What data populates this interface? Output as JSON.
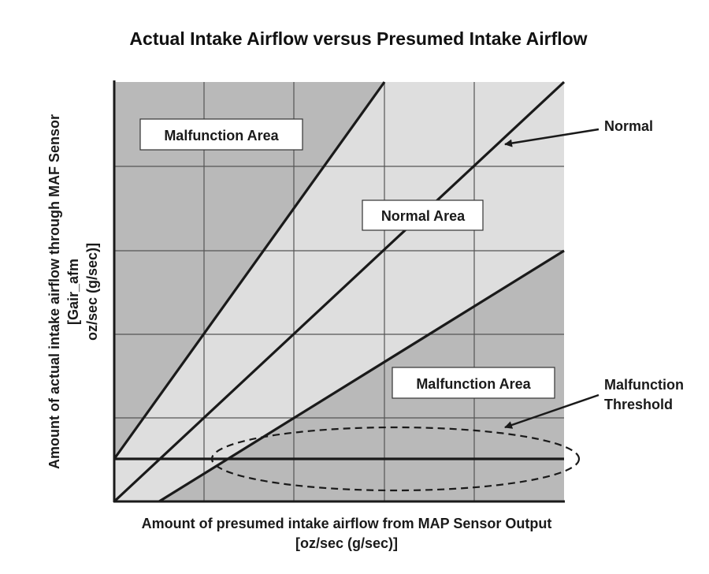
{
  "title": "Actual Intake Airflow versus Presumed Intake Airflow",
  "y_axis": {
    "line1": "Amount of actual intake airflow through MAF Sensor",
    "line2": "[Gair_afm",
    "line3": "oz/sec (g/sec)]"
  },
  "x_axis": {
    "line1": "Amount of presumed intake airflow from MAP Sensor Output",
    "line2": "[oz/sec (g/sec)]"
  },
  "regions": {
    "upper_malfunction": "Malfunction Area",
    "normal": "Normal Area",
    "lower_malfunction": "Malfunction Area"
  },
  "callouts": {
    "normal": "Normal",
    "threshold_line1": "Malfunction",
    "threshold_line2": "Threshold"
  },
  "colors": {
    "malfunction_fill": "#b9b9b9",
    "normal_fill": "#dedede",
    "line": "#1a1a1a",
    "grid": "#555555"
  }
}
